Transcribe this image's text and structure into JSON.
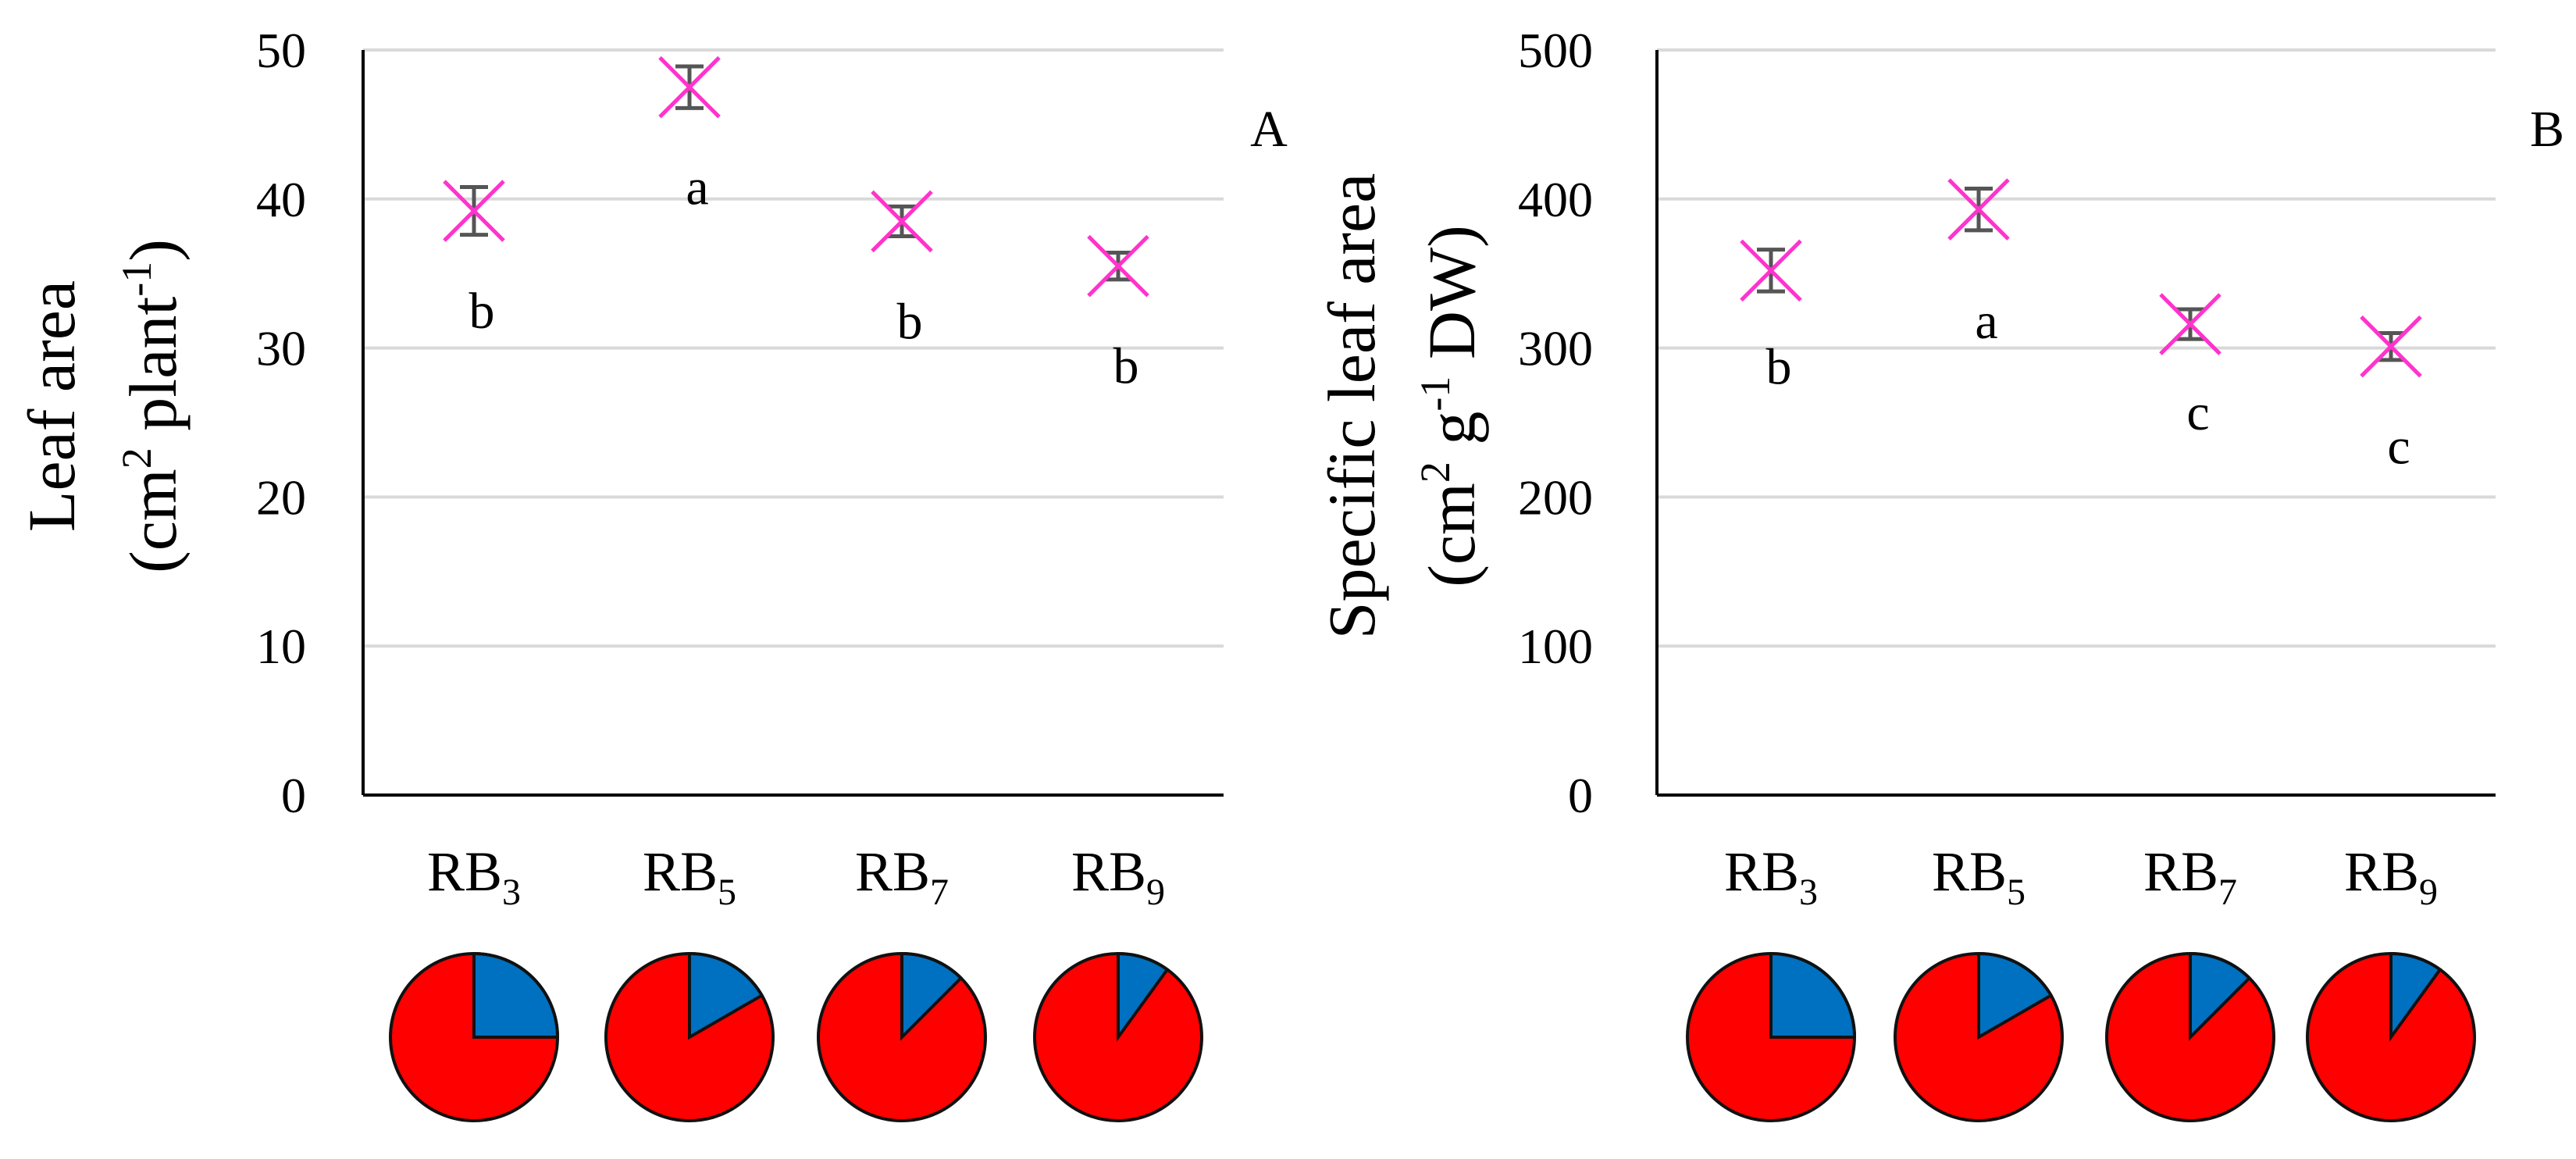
{
  "chart_data": [
    {
      "type": "scatter",
      "panel_label": "A",
      "title": "",
      "xlabel": "",
      "ylabel_line1": "Leaf area",
      "ylabel_line2": "(cm",
      "ylabel_sup1": "2",
      "ylabel_mid": " plant",
      "ylabel_sup2": "-1",
      "ylabel_end": ")",
      "ylim": [
        0,
        50
      ],
      "yticks": [
        "0",
        "10",
        "20",
        "30",
        "40",
        "50"
      ],
      "grid": true,
      "categories": [
        {
          "base": "RB",
          "sub": "3"
        },
        {
          "base": "RB",
          "sub": "5"
        },
        {
          "base": "RB",
          "sub": "7"
        },
        {
          "base": "RB",
          "sub": "9"
        }
      ],
      "values": [
        39.2,
        47.5,
        38.5,
        35.5
      ],
      "errors": [
        1.6,
        1.4,
        1.0,
        0.9
      ],
      "significance": [
        "b",
        "a",
        "b",
        "b"
      ]
    },
    {
      "type": "scatter",
      "panel_label": "B",
      "title": "",
      "xlabel": "",
      "ylabel_line1": "Specific leaf area",
      "ylabel_line2": "(cm",
      "ylabel_sup1": "2",
      "ylabel_mid": " g",
      "ylabel_sup2": "-1",
      "ylabel_end": " DW)",
      "ylim": [
        0,
        500
      ],
      "yticks": [
        "0",
        "100",
        "200",
        "300",
        "400",
        "500"
      ],
      "grid": true,
      "categories": [
        {
          "base": "RB",
          "sub": "3"
        },
        {
          "base": "RB",
          "sub": "5"
        },
        {
          "base": "RB",
          "sub": "7"
        },
        {
          "base": "RB",
          "sub": "9"
        }
      ],
      "values": [
        352,
        393,
        316,
        301
      ],
      "errors": [
        14,
        14,
        10,
        9
      ],
      "significance": [
        "b",
        "a",
        "c",
        "c"
      ]
    }
  ],
  "pie_blue_fractions": [
    0.25,
    0.1667,
    0.125,
    0.1
  ],
  "colors": {
    "red": "#ff0000",
    "blue": "#0070c0",
    "marker": "#ff33cc",
    "errorbar": "#555555",
    "grid": "#d9d9d9"
  }
}
